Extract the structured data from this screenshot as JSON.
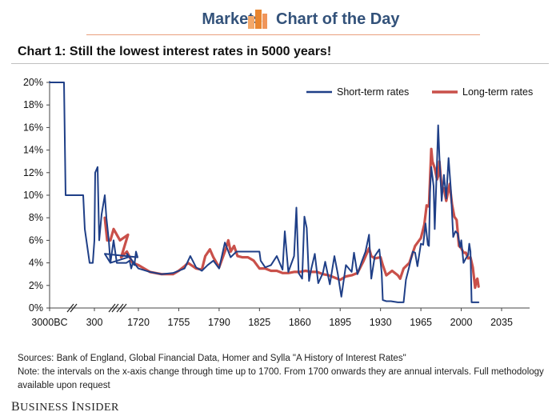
{
  "header": {
    "left_label": "Markets",
    "right_label": "Chart of the Day",
    "logo_icon": "orange-bar-chart-icon",
    "accent_color": "#e8852f",
    "text_color": "#33527a"
  },
  "chart_title": "Chart 1:  Still the lowest interest rates in 5000 years!",
  "footnotes": {
    "sources": "Sources: Bank of England, Global Financial Data, Homer and Sylla \"A History of Interest Rates\"",
    "note": "Note: the intervals on the x-axis change through time up to 1700. From 1700 onwards they are annual intervals. Full methodology available upon request"
  },
  "brand": "Business Insider",
  "chart_data": {
    "type": "line",
    "title": "Chart 1:  Still the lowest interest rates in 5000 years!",
    "xlabel": "",
    "ylabel": "",
    "x_tick_labels": [
      "3000BC",
      "300",
      "1720",
      "1755",
      "1790",
      "1825",
      "1860",
      "1895",
      "1930",
      "1965",
      "2000",
      "2035"
    ],
    "y_tick_labels": [
      "0%",
      "2%",
      "4%",
      "6%",
      "8%",
      "10%",
      "12%",
      "14%",
      "16%",
      "18%",
      "20%"
    ],
    "ylim": [
      0,
      20
    ],
    "axis_breaks": "two broken-axis markers in the pre-1700 section of the x-axis",
    "grid": false,
    "legend_position": "top-right",
    "series": [
      {
        "name": "Short-term rates",
        "color": "#1f3f87",
        "points": [
          [
            "3000BC",
            20
          ],
          [
            "-2500",
            20
          ],
          [
            "-2200",
            10
          ],
          [
            "-1500",
            10
          ],
          [
            "-1000",
            10
          ],
          [
            "-800",
            10
          ],
          [
            "-700",
            7
          ],
          [
            "-600",
            6
          ],
          [
            "-500",
            4
          ],
          [
            "-400",
            4
          ],
          [
            "-300",
            6
          ],
          [
            "-200",
            12
          ],
          [
            "-100",
            12.5
          ],
          [
            "0",
            6
          ],
          [
            "100",
            8.3
          ],
          [
            "200",
            10
          ],
          [
            "250",
            8
          ],
          [
            "300",
            6
          ],
          [
            "400",
            4
          ],
          [
            "500",
            6
          ],
          [
            "600",
            4
          ],
          [
            "700",
            4
          ],
          [
            "800",
            4
          ],
          [
            "900",
            4
          ],
          [
            "1000",
            4.2
          ],
          [
            "1100",
            3.5
          ],
          [
            "1200",
            4
          ],
          [
            "1300",
            3.8
          ],
          [
            "1400",
            5
          ],
          [
            "1500",
            4.5
          ],
          [
            "1600",
            4.8
          ],
          [
            "1650",
            4
          ],
          [
            "1700",
            4.5
          ],
          [
            1710,
            4.8
          ],
          [
            1720,
            3.5
          ],
          [
            1730,
            3.2
          ],
          [
            1740,
            3.0
          ],
          [
            1750,
            3.1
          ],
          [
            1755,
            3.3
          ],
          [
            1760,
            3.5
          ],
          [
            1765,
            4.6
          ],
          [
            1770,
            3.6
          ],
          [
            1775,
            3.3
          ],
          [
            1780,
            3.8
          ],
          [
            1785,
            4.2
          ],
          [
            1790,
            3.5
          ],
          [
            1795,
            5.8
          ],
          [
            1800,
            4.5
          ],
          [
            1805,
            5.0
          ],
          [
            1810,
            5.0
          ],
          [
            1815,
            5.0
          ],
          [
            1820,
            5.0
          ],
          [
            1825,
            5.0
          ],
          [
            1826,
            4.2
          ],
          [
            1830,
            3.6
          ],
          [
            1835,
            3.8
          ],
          [
            1840,
            4.6
          ],
          [
            1845,
            3.4
          ],
          [
            1847,
            6.8
          ],
          [
            1850,
            3.2
          ],
          [
            1855,
            4.6
          ],
          [
            1857,
            8.9
          ],
          [
            1859,
            3.1
          ],
          [
            1862,
            2.6
          ],
          [
            1864,
            8.1
          ],
          [
            1866,
            7.1
          ],
          [
            1868,
            2.4
          ],
          [
            1870,
            3.5
          ],
          [
            1873,
            4.8
          ],
          [
            1876,
            2.2
          ],
          [
            1880,
            3.1
          ],
          [
            1882,
            4.1
          ],
          [
            1886,
            2.1
          ],
          [
            1890,
            4.6
          ],
          [
            1893,
            3.0
          ],
          [
            1896,
            1.0
          ],
          [
            1900,
            3.8
          ],
          [
            1905,
            3.2
          ],
          [
            1907,
            4.9
          ],
          [
            1910,
            3.0
          ],
          [
            1914,
            4.2
          ],
          [
            1917,
            5.0
          ],
          [
            1920,
            6.5
          ],
          [
            1922,
            2.6
          ],
          [
            1925,
            4.6
          ],
          [
            1929,
            5.2
          ],
          [
            1931,
            3.1
          ],
          [
            1932,
            0.7
          ],
          [
            1935,
            0.6
          ],
          [
            1939,
            0.6
          ],
          [
            1945,
            0.5
          ],
          [
            1950,
            0.5
          ],
          [
            1952,
            2.5
          ],
          [
            1955,
            3.7
          ],
          [
            1958,
            5.0
          ],
          [
            1960,
            4.9
          ],
          [
            1962,
            3.7
          ],
          [
            1965,
            5.7
          ],
          [
            1967,
            5.6
          ],
          [
            1969,
            7.5
          ],
          [
            1971,
            5.6
          ],
          [
            1972,
            5.5
          ],
          [
            1973,
            10.5
          ],
          [
            1974,
            12.5
          ],
          [
            1976,
            10.8
          ],
          [
            1977,
            7.0
          ],
          [
            1979,
            13.0
          ],
          [
            1980,
            16.2
          ],
          [
            1981,
            13.5
          ],
          [
            1983,
            9.5
          ],
          [
            1985,
            11.8
          ],
          [
            1987,
            9.7
          ],
          [
            1989,
            13.3
          ],
          [
            1991,
            10.5
          ],
          [
            1993,
            6.3
          ],
          [
            1995,
            6.8
          ],
          [
            1997,
            6.6
          ],
          [
            1999,
            5.4
          ],
          [
            2000,
            6.0
          ],
          [
            2002,
            4.0
          ],
          [
            2004,
            4.4
          ],
          [
            2006,
            4.7
          ],
          [
            2007,
            5.7
          ],
          [
            2008,
            5.0
          ],
          [
            2009,
            0.5
          ],
          [
            2010,
            0.5
          ],
          [
            2015,
            0.5
          ]
        ]
      },
      {
        "name": "Long-term rates",
        "color": "#c9504a",
        "points": [
          [
            "1600",
            8
          ],
          [
            "1620",
            6
          ],
          [
            "1650",
            6
          ],
          [
            "1670",
            7
          ],
          [
            "1690",
            6
          ],
          [
            "1700",
            6.5
          ],
          [
            1705,
            4.5
          ],
          [
            1710,
            5.0
          ],
          [
            1715,
            4.0
          ],
          [
            1720,
            3.8
          ],
          [
            1725,
            3.5
          ],
          [
            1730,
            3.2
          ],
          [
            1740,
            3.0
          ],
          [
            1750,
            3.0
          ],
          [
            1755,
            3.3
          ],
          [
            1760,
            3.7
          ],
          [
            1763,
            4.0
          ],
          [
            1770,
            3.5
          ],
          [
            1775,
            3.4
          ],
          [
            1778,
            4.6
          ],
          [
            1782,
            5.2
          ],
          [
            1785,
            4.5
          ],
          [
            1790,
            3.6
          ],
          [
            1795,
            5.0
          ],
          [
            1798,
            6.0
          ],
          [
            1800,
            5.0
          ],
          [
            1803,
            5.5
          ],
          [
            1806,
            4.6
          ],
          [
            1810,
            4.5
          ],
          [
            1815,
            4.5
          ],
          [
            1820,
            4.2
          ],
          [
            1825,
            3.5
          ],
          [
            1830,
            3.5
          ],
          [
            1835,
            3.3
          ],
          [
            1840,
            3.3
          ],
          [
            1845,
            3.1
          ],
          [
            1850,
            3.1
          ],
          [
            1855,
            3.2
          ],
          [
            1860,
            3.2
          ],
          [
            1865,
            3.3
          ],
          [
            1870,
            3.2
          ],
          [
            1875,
            3.2
          ],
          [
            1880,
            3.0
          ],
          [
            1885,
            2.9
          ],
          [
            1890,
            2.7
          ],
          [
            1895,
            2.5
          ],
          [
            1900,
            2.8
          ],
          [
            1905,
            2.9
          ],
          [
            1910,
            3.1
          ],
          [
            1915,
            4.1
          ],
          [
            1920,
            5.3
          ],
          [
            1922,
            4.6
          ],
          [
            1925,
            4.4
          ],
          [
            1930,
            4.5
          ],
          [
            1932,
            3.8
          ],
          [
            1935,
            2.9
          ],
          [
            1940,
            3.3
          ],
          [
            1945,
            2.9
          ],
          [
            1947,
            2.6
          ],
          [
            1950,
            3.5
          ],
          [
            1955,
            4.0
          ],
          [
            1960,
            5.5
          ],
          [
            1965,
            6.2
          ],
          [
            1968,
            7.4
          ],
          [
            1970,
            9.1
          ],
          [
            1972,
            9.0
          ],
          [
            1974,
            14.1
          ],
          [
            1975,
            13.0
          ],
          [
            1977,
            12.4
          ],
          [
            1979,
            11.4
          ],
          [
            1980,
            11.7
          ],
          [
            1981,
            13.0
          ],
          [
            1983,
            10.7
          ],
          [
            1985,
            10.6
          ],
          [
            1987,
            9.5
          ],
          [
            1990,
            11.0
          ],
          [
            1992,
            9.2
          ],
          [
            1994,
            8.1
          ],
          [
            1996,
            7.8
          ],
          [
            1998,
            5.5
          ],
          [
            2000,
            5.3
          ],
          [
            2002,
            4.9
          ],
          [
            2004,
            4.9
          ],
          [
            2006,
            4.4
          ],
          [
            2008,
            4.5
          ],
          [
            2010,
            3.6
          ],
          [
            2012,
            1.8
          ],
          [
            2013,
            2.4
          ],
          [
            2014,
            2.6
          ],
          [
            2015,
            1.9
          ]
        ]
      }
    ]
  }
}
